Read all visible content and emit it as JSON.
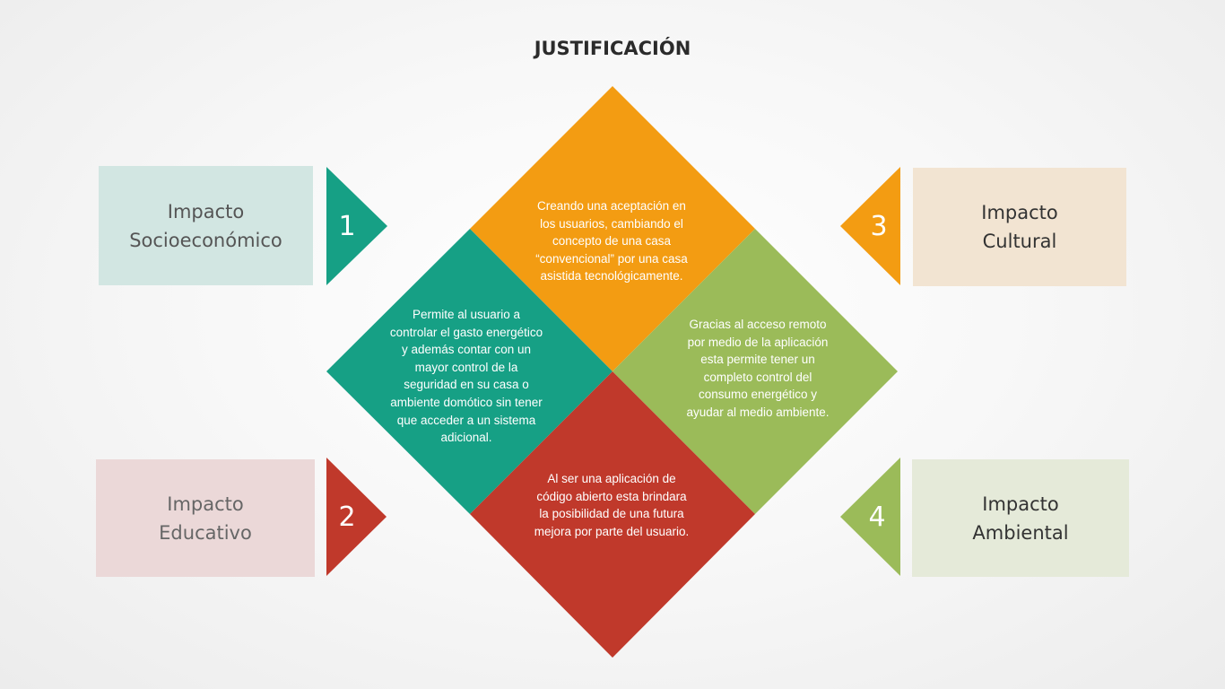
{
  "title": "JUSTIFICACIÓN",
  "colors": {
    "teal": "#16a085",
    "red": "#c0392b",
    "orange": "#f39c12",
    "green": "#9bbb59"
  },
  "impacts": {
    "socioeconomico": {
      "number": "1",
      "lines": [
        "Impacto",
        "Socioeconómico"
      ]
    },
    "educativo": {
      "number": "2",
      "lines": [
        "Impacto",
        "Educativo"
      ]
    },
    "cultural": {
      "number": "3",
      "lines": [
        "Impacto",
        "Cultural"
      ]
    },
    "ambiental": {
      "number": "4",
      "lines": [
        "Impacto",
        "Ambiental"
      ]
    }
  },
  "quadrants": {
    "top": {
      "lines": [
        "Creando una aceptación en",
        "los usuarios, cambiando el",
        "concepto de una casa",
        "“convencional” por una casa",
        "asistida tecnológicamente."
      ]
    },
    "left": {
      "lines": [
        "Permite al usuario a",
        "controlar el gasto energético",
        "y además contar con un",
        "mayor control de la",
        "seguridad en su casa o",
        "ambiente domótico sin tener",
        "que acceder a un sistema",
        "adicional."
      ]
    },
    "right": {
      "lines": [
        "Gracias al acceso remoto",
        "por medio de la aplicación",
        "esta permite  tener un",
        "completo control del",
        "consumo energético y",
        "ayudar al medio ambiente."
      ]
    },
    "bottom": {
      "lines": [
        "Al ser una aplicación de",
        "código abierto esta brindara",
        "la posibilidad de una futura",
        "mejora por parte del usuario."
      ]
    }
  }
}
